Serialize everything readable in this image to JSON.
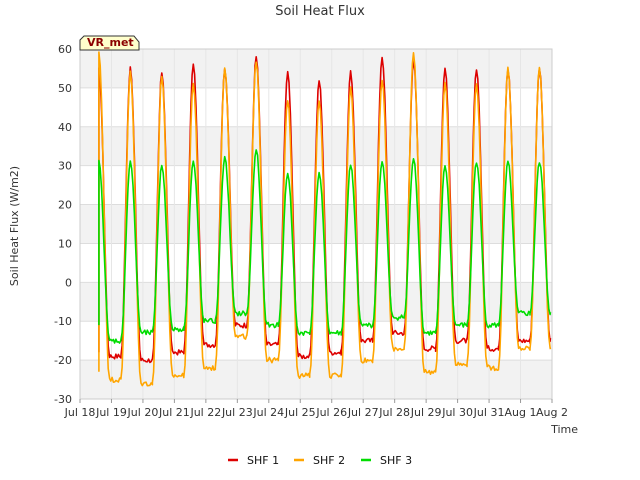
{
  "chart_data": {
    "type": "line",
    "title": "Soil Heat Flux",
    "xlabel": "Time",
    "ylabel": "Soil Heat Flux (W/m2)",
    "badge": "VR_met",
    "xlim": [
      0,
      15
    ],
    "ylim": [
      -30,
      60
    ],
    "yticks": [
      -30,
      -20,
      -10,
      0,
      10,
      20,
      30,
      40,
      50,
      60
    ],
    "xticks": [
      {
        "pos": 0,
        "label": "Jul 18"
      },
      {
        "pos": 1,
        "label": "Jul 19"
      },
      {
        "pos": 2,
        "label": "Jul 20"
      },
      {
        "pos": 3,
        "label": "Jul 21"
      },
      {
        "pos": 4,
        "label": "Jul 22"
      },
      {
        "pos": 5,
        "label": "Jul 23"
      },
      {
        "pos": 6,
        "label": "Jul 24"
      },
      {
        "pos": 7,
        "label": "Jul 25"
      },
      {
        "pos": 8,
        "label": "Jul 26"
      },
      {
        "pos": 9,
        "label": "Jul 27"
      },
      {
        "pos": 10,
        "label": "Jul 28"
      },
      {
        "pos": 11,
        "label": "Jul 29"
      },
      {
        "pos": 12,
        "label": "Jul 30"
      },
      {
        "pos": 13,
        "label": "Jul 31"
      },
      {
        "pos": 14,
        "label": "Aug 1"
      },
      {
        "pos": 15,
        "label": "Aug 2"
      }
    ],
    "grid": true,
    "legend_position": "bottom-center",
    "series": [
      {
        "name": "SHF 1",
        "color": "#dd0000",
        "days": [
          0.6,
          1.6,
          2.6,
          3.6,
          4.6,
          5.6,
          6.6,
          7.6,
          8.6,
          9.6,
          10.6,
          11.6,
          12.6,
          13.6,
          14.6
        ],
        "start": {
          "x": 0.6,
          "y": -18
        },
        "end": {
          "x": 14.95,
          "y": -15
        },
        "peaks": [
          55,
          55,
          54,
          56,
          55,
          58,
          54,
          52,
          54,
          58,
          57,
          55,
          55,
          55,
          55
        ],
        "troughs": [
          -19,
          -19,
          -20,
          -18,
          -16,
          -11,
          -16,
          -19,
          -18,
          -15,
          -13,
          -17,
          -15,
          -17,
          -15
        ]
      },
      {
        "name": "SHF 2",
        "color": "#ffa500",
        "days": [
          0.6,
          1.6,
          2.6,
          3.6,
          4.6,
          5.6,
          6.6,
          7.6,
          8.6,
          9.6,
          10.6,
          11.6,
          12.6,
          13.6,
          14.6
        ],
        "start": {
          "x": 0.6,
          "y": -23
        },
        "end": {
          "x": 14.95,
          "y": -17
        },
        "peaks": [
          59,
          54,
          53,
          51,
          55,
          57,
          47,
          47,
          50,
          52,
          59,
          51,
          51,
          55,
          55
        ],
        "troughs": [
          -25,
          -25,
          -26,
          -24,
          -22,
          -14,
          -20,
          -24,
          -24,
          -20,
          -17,
          -23,
          -21,
          -22,
          -17
        ]
      },
      {
        "name": "SHF 3",
        "color": "#00dd00",
        "days": [
          0.6,
          1.6,
          2.6,
          3.6,
          4.6,
          5.6,
          6.6,
          7.6,
          8.6,
          9.6,
          10.6,
          11.6,
          12.6,
          13.6,
          14.6
        ],
        "start": {
          "x": 0.6,
          "y": -11
        },
        "end": {
          "x": 14.95,
          "y": -8
        },
        "peaks": [
          31,
          31,
          30,
          31,
          32,
          34,
          28,
          28,
          30,
          31,
          32,
          30,
          31,
          31,
          31
        ],
        "troughs": [
          -14,
          -15,
          -13,
          -12,
          -10,
          -8,
          -11,
          -13,
          -13,
          -11,
          -9,
          -13,
          -11,
          -11,
          -8
        ]
      }
    ]
  }
}
